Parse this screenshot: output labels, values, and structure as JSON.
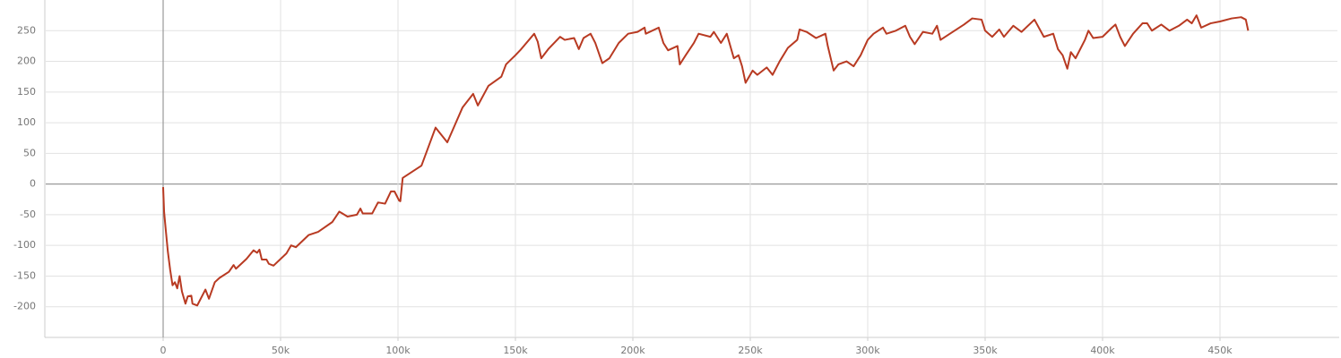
{
  "chart_data": {
    "type": "line",
    "xlim": [
      -50000,
      500000
    ],
    "ylim": [
      -250,
      300
    ],
    "xticks": [
      0,
      {
        "value": 50000,
        "label": "50k"
      },
      {
        "value": 100000,
        "label": "100k"
      },
      {
        "value": 150000,
        "label": "150k"
      },
      {
        "value": 200000,
        "label": "200k"
      },
      {
        "value": 250000,
        "label": "250k"
      },
      {
        "value": 300000,
        "label": "300k"
      },
      {
        "value": 350000,
        "label": "350k"
      },
      {
        "value": 400000,
        "label": "400k"
      },
      {
        "value": 450000,
        "label": "450k"
      }
    ],
    "yticks": [
      -200,
      -150,
      -100,
      -50,
      0,
      50,
      100,
      150,
      200,
      250
    ],
    "grid": true,
    "x": [
      0,
      400,
      1000,
      2000,
      3000,
      4000,
      5000,
      6000,
      7000,
      8000,
      9500,
      10500,
      12000,
      12500,
      14500,
      18000,
      19500,
      22000,
      24000,
      28000,
      30000,
      31000,
      35500,
      38500,
      40000,
      41000,
      42000,
      44000,
      45000,
      47000,
      52500,
      54500,
      56500,
      62000,
      66000,
      72000,
      75000,
      78500,
      82500,
      84000,
      85000,
      89000,
      91500,
      94500,
      97000,
      98500,
      100500,
      101000,
      102000,
      110000,
      116000,
      121000,
      127500,
      132000,
      134000,
      138500,
      144000,
      146000,
      150000,
      152000,
      158000,
      159500,
      161000,
      164000,
      169000,
      171000,
      175000,
      177000,
      179000,
      182000,
      184000,
      187000,
      190000,
      194000,
      198000,
      202000,
      205000,
      205500,
      211000,
      213000,
      215000,
      219000,
      220000,
      222500,
      226000,
      228000,
      233000,
      234500,
      237500,
      240000,
      243000,
      245000,
      246500,
      248000,
      251000,
      253000,
      257000,
      259500,
      262500,
      266000,
      270000,
      271000,
      274000,
      278000,
      282000,
      283000,
      285500,
      287500,
      291000,
      294000,
      297000,
      300000,
      302500,
      306500,
      308000,
      312000,
      316000,
      318000,
      320000,
      323500,
      327500,
      329500,
      331000,
      335000,
      341000,
      344500,
      348500,
      350000,
      353000,
      356000,
      358000,
      362000,
      365500,
      371000,
      375000,
      379000,
      381000,
      383000,
      385000,
      386500,
      388500,
      392500,
      394000,
      396000,
      400000,
      404000,
      405500,
      407500,
      409500,
      413000,
      417000,
      419000,
      421000,
      425000,
      428500,
      432500,
      436000,
      438000,
      440000,
      442000,
      446000,
      450000,
      455000,
      459000,
      461000,
      462000
    ],
    "series": [
      {
        "color": "#b83a22",
        "values": [
          -5,
          -45,
          -70,
          -110,
          -140,
          -165,
          -160,
          -170,
          -150,
          -175,
          -195,
          -183,
          -182,
          -195,
          -198,
          -172,
          -187,
          -160,
          -153,
          -143,
          -132,
          -138,
          -122,
          -108,
          -112,
          -107,
          -123,
          -123,
          -130,
          -133,
          -113,
          -100,
          -103,
          -83,
          -78,
          -62,
          -45,
          -53,
          -50,
          -40,
          -48,
          -48,
          -30,
          -32,
          -12,
          -12,
          -27,
          -28,
          10,
          30,
          92,
          68,
          125,
          147,
          128,
          160,
          175,
          195,
          210,
          218,
          245,
          232,
          205,
          220,
          240,
          235,
          238,
          220,
          238,
          245,
          230,
          197,
          205,
          230,
          245,
          248,
          255,
          245,
          255,
          230,
          218,
          225,
          195,
          210,
          230,
          245,
          240,
          248,
          230,
          245,
          205,
          210,
          192,
          165,
          185,
          178,
          190,
          178,
          200,
          222,
          235,
          252,
          248,
          238,
          245,
          225,
          185,
          195,
          200,
          192,
          210,
          235,
          245,
          255,
          245,
          250,
          258,
          240,
          228,
          248,
          245,
          258,
          235,
          245,
          260,
          270,
          268,
          250,
          240,
          252,
          240,
          258,
          248,
          268,
          240,
          245,
          220,
          210,
          188,
          215,
          205,
          235,
          250,
          238,
          240,
          255,
          260,
          240,
          225,
          245,
          262,
          262,
          250,
          260,
          250,
          258,
          268,
          262,
          275,
          255,
          262,
          265,
          270,
          272,
          268,
          250
        ]
      }
    ]
  }
}
